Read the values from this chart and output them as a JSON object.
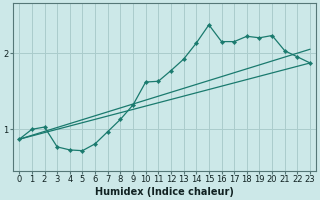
{
  "xlabel": "Humidex (Indice chaleur)",
  "background_color": "#cce8e8",
  "line_color": "#1a7a6e",
  "grid_color": "#aacccc",
  "x_data": [
    0,
    1,
    2,
    3,
    4,
    5,
    6,
    7,
    8,
    9,
    10,
    11,
    12,
    13,
    14,
    15,
    16,
    17,
    18,
    19,
    20,
    21,
    22,
    23
  ],
  "y_data": [
    0.87,
    1.0,
    1.03,
    0.77,
    0.73,
    0.72,
    0.81,
    0.97,
    1.13,
    1.32,
    1.62,
    1.63,
    1.77,
    1.92,
    2.13,
    2.37,
    2.15,
    2.15,
    2.22,
    2.2,
    2.23,
    2.03,
    1.95,
    1.87
  ],
  "ylim": [
    0.45,
    2.65
  ],
  "yticks": [
    1,
    2
  ],
  "xlim": [
    -0.5,
    23.5
  ],
  "trend1_x": [
    0,
    23
  ],
  "trend1_y": [
    0.87,
    1.87
  ],
  "trend2_x": [
    0,
    23
  ],
  "trend2_y": [
    0.87,
    2.05
  ],
  "tick_fontsize": 6,
  "xlabel_fontsize": 7
}
